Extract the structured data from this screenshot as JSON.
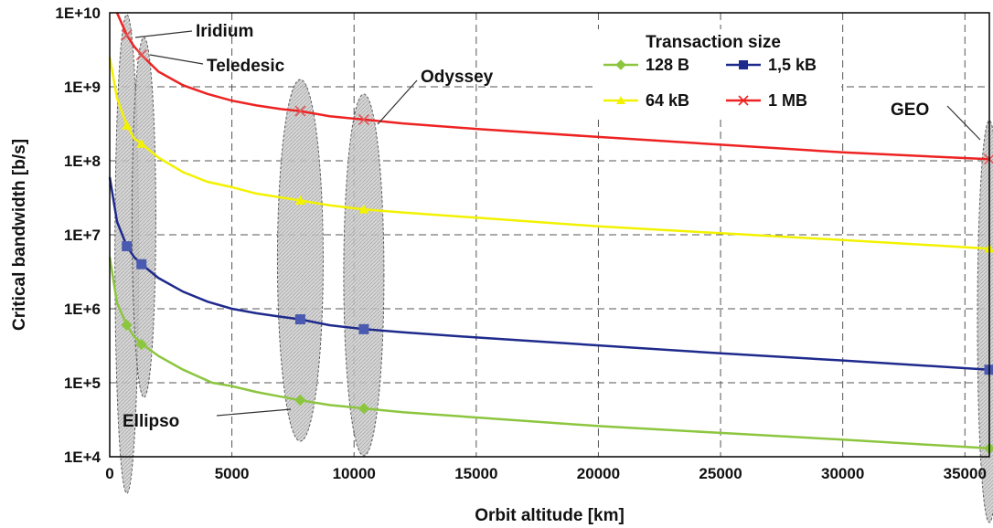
{
  "chart_data": {
    "type": "line",
    "title": "",
    "xlabel": "Orbit altitude [km]",
    "ylabel": "Critical bandwidth [b/s]",
    "xlim": [
      0,
      36000
    ],
    "ylim": [
      10000,
      10000000000
    ],
    "yscale": "log",
    "grid": true,
    "x_ticks": [
      "0",
      "5000",
      "10000",
      "15000",
      "20000",
      "25000",
      "30000",
      "35000"
    ],
    "x_tick_values": [
      0,
      5000,
      10000,
      15000,
      20000,
      25000,
      30000,
      35000
    ],
    "y_ticks": [
      "1E+4",
      "1E+5",
      "1E+6",
      "1E+7",
      "1E+8",
      "1E+9",
      "1E+10"
    ],
    "y_tick_values": [
      10000,
      100000,
      1000000,
      10000000,
      100000000,
      1000000000,
      10000000000
    ],
    "legend": {
      "title": "Transaction size",
      "placement": "top-right"
    },
    "series": [
      {
        "name": "128 B",
        "color": "#8cc63f",
        "marker": "diamond",
        "x": [
          0,
          300,
          700,
          1000,
          1400,
          2000,
          3000,
          4200,
          5000,
          6000,
          7000,
          7800,
          9000,
          10400,
          12000,
          15000,
          20000,
          25000,
          30000,
          36000
        ],
        "values": [
          5000000,
          1200000,
          600000,
          420000,
          320000,
          230000,
          150000,
          100000,
          90000,
          75000,
          65000,
          58000,
          50000,
          45000,
          40000,
          34000,
          26000,
          21000,
          17000,
          13000
        ],
        "markers_x": [
          700,
          1300,
          7800,
          10400,
          36000
        ],
        "markers_y": [
          600000,
          330000,
          58000,
          45000,
          13000
        ]
      },
      {
        "name": "1,5 kB",
        "color": "#1e2a8c",
        "marker": "square",
        "x": [
          0,
          300,
          700,
          1000,
          1300,
          2000,
          3000,
          4000,
          5000,
          6000,
          7000,
          7800,
          9000,
          10400,
          12000,
          15000,
          20000,
          25000,
          30000,
          36000
        ],
        "values": [
          60000000,
          15000000,
          7000000,
          5000000,
          4000000,
          2600000,
          1700000,
          1250000,
          1000000,
          870000,
          780000,
          720000,
          600000,
          530000,
          480000,
          410000,
          320000,
          250000,
          200000,
          150000
        ],
        "markers_x": [
          700,
          1300,
          7800,
          10400,
          36000
        ],
        "markers_y": [
          7000000,
          4000000,
          720000,
          530000,
          150000
        ]
      },
      {
        "name": "64 kB",
        "color": "#f2f200",
        "marker": "triangle",
        "x": [
          0,
          300,
          700,
          1000,
          1300,
          2000,
          3000,
          4000,
          5000,
          6000,
          7000,
          7800,
          9000,
          10400,
          12000,
          15000,
          20000,
          25000,
          30000,
          36000
        ],
        "values": [
          2500000000,
          700000000,
          300000000,
          200000000,
          170000000,
          110000000,
          70000000,
          52000000,
          44000000,
          36000000,
          32000000,
          29000000,
          25000000,
          22000000,
          20000000,
          17000000,
          13000000,
          10500000,
          8500000,
          6500000
        ],
        "markers_x": [
          700,
          1300,
          7800,
          10400,
          36000
        ],
        "markers_y": [
          300000000,
          170000000,
          29000000,
          22000000,
          6500000
        ]
      },
      {
        "name": "1 MB",
        "color": "#ee2222",
        "marker": "x",
        "x": [
          300,
          700,
          1000,
          1300,
          2000,
          3000,
          4000,
          5000,
          6000,
          7000,
          7800,
          9000,
          10400,
          12000,
          15000,
          20000,
          25000,
          30000,
          36000
        ],
        "values": [
          10000000000,
          5000000000,
          3500000000,
          2700000000,
          1600000000,
          1050000000,
          800000000,
          650000000,
          560000000,
          500000000,
          470000000,
          400000000,
          360000000,
          320000000,
          270000000,
          210000000,
          165000000,
          130000000,
          105000000
        ],
        "markers_x": [
          700,
          1300,
          7800,
          10400,
          36000
        ],
        "markers_y": [
          5000000000,
          2700000000,
          470000000,
          360000000,
          105000000
        ]
      }
    ],
    "annotations": [
      "Iridium",
      "Teledesic",
      "Odyssey",
      "GEO",
      "Ellipso"
    ]
  }
}
